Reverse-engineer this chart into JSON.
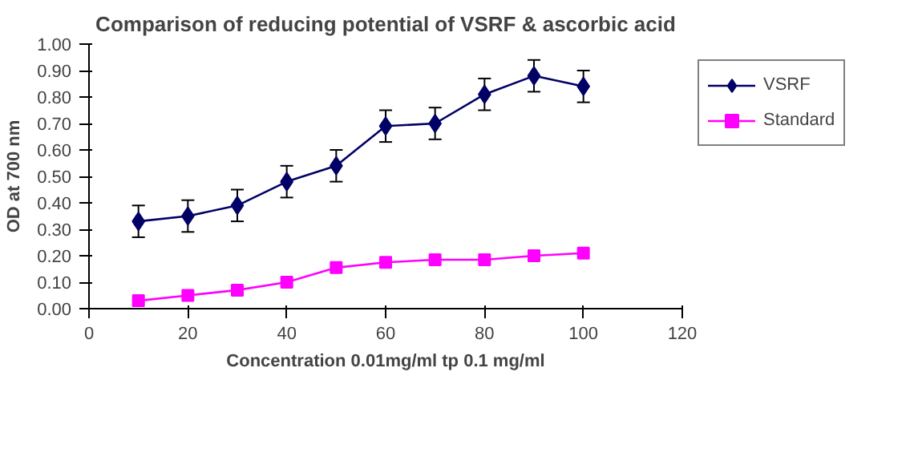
{
  "chart_data": {
    "type": "line",
    "title": "Comparison of reducing potential of VSRF & ascorbic acid",
    "xlabel": "Concentration 0.01mg/ml tp 0.1 mg/ml",
    "ylabel": "OD at 700 nm",
    "x": [
      10,
      20,
      30,
      40,
      50,
      60,
      70,
      80,
      90,
      100
    ],
    "series": [
      {
        "name": "VSRF",
        "color": "#000066",
        "marker": "diamond",
        "values": [
          0.33,
          0.35,
          0.39,
          0.48,
          0.54,
          0.69,
          0.7,
          0.81,
          0.88,
          0.84
        ],
        "errors": [
          0.06,
          0.06,
          0.06,
          0.06,
          0.06,
          0.06,
          0.06,
          0.06,
          0.06,
          0.06
        ]
      },
      {
        "name": "Standard",
        "color": "#ff00ff",
        "marker": "square",
        "values": [
          0.03,
          0.05,
          0.07,
          0.1,
          0.155,
          0.175,
          0.185,
          0.185,
          0.2,
          0.21
        ]
      }
    ],
    "xlim": [
      0,
      120
    ],
    "xticks": [
      0,
      20,
      40,
      60,
      80,
      100,
      120
    ],
    "ylim": [
      0,
      1
    ],
    "yticks": [
      {
        "value": 0,
        "label": "0.00"
      },
      {
        "value": 0.1,
        "label": "0.10"
      },
      {
        "value": 0.2,
        "label": "0.20"
      },
      {
        "value": 0.3,
        "label": "0.30"
      },
      {
        "value": 0.4,
        "label": "0.40"
      },
      {
        "value": 0.5,
        "label": "0.50"
      },
      {
        "value": 0.6,
        "label": "0.60"
      },
      {
        "value": 0.7,
        "label": "0.70"
      },
      {
        "value": 0.8,
        "label": "0.80"
      },
      {
        "value": 0.9,
        "label": "0.90"
      },
      {
        "value": 1,
        "label": "1.00"
      }
    ],
    "grid": false,
    "legend": "top right",
    "line_style": "solid"
  }
}
